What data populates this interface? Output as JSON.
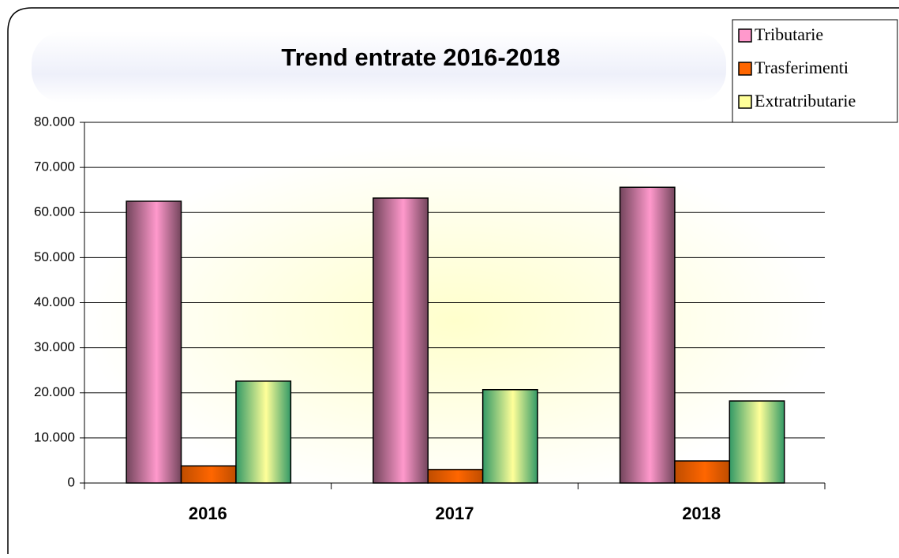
{
  "chart_data": {
    "type": "bar",
    "title": "Trend entrate 2016-2018",
    "categories": [
      "2016",
      "2017",
      "2018"
    ],
    "series": [
      {
        "name": "Tributarie",
        "color": "#ff99cc",
        "values": [
          62500,
          63200,
          65600
        ]
      },
      {
        "name": "Trasferimenti",
        "color": "#ff6600",
        "values": [
          3800,
          3000,
          4900
        ]
      },
      {
        "name": "Extratributarie",
        "color": "#ffff99",
        "values": [
          22600,
          20700,
          18200
        ]
      }
    ],
    "ylim": [
      0,
      80000
    ],
    "yticks": [
      0,
      {
        "value": 10000,
        "label": "10.000"
      },
      {
        "value": 20000,
        "label": "20.000"
      },
      {
        "value": 30000,
        "label": "30.000"
      },
      {
        "value": 40000,
        "label": "40.000"
      },
      {
        "value": 50000,
        "label": "50.000"
      },
      {
        "value": 60000,
        "label": "60.000"
      },
      {
        "value": 70000,
        "label": "70.000"
      },
      {
        "value": 80000,
        "label": "80.000"
      }
    ],
    "grid": true,
    "legend": "top-right"
  }
}
